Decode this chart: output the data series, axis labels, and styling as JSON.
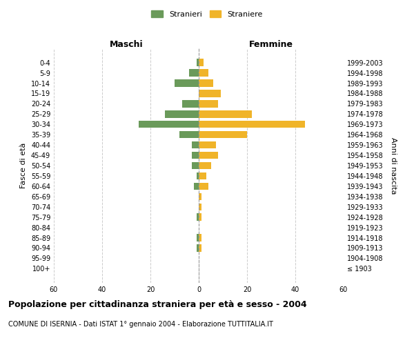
{
  "age_groups": [
    "100+",
    "95-99",
    "90-94",
    "85-89",
    "80-84",
    "75-79",
    "70-74",
    "65-69",
    "60-64",
    "55-59",
    "50-54",
    "45-49",
    "40-44",
    "35-39",
    "30-34",
    "25-29",
    "20-24",
    "15-19",
    "10-14",
    "5-9",
    "0-4"
  ],
  "birth_years": [
    "≤ 1903",
    "1904-1908",
    "1909-1913",
    "1914-1918",
    "1919-1923",
    "1924-1928",
    "1929-1933",
    "1934-1938",
    "1939-1943",
    "1944-1948",
    "1949-1953",
    "1954-1958",
    "1959-1963",
    "1964-1968",
    "1969-1973",
    "1974-1978",
    "1979-1983",
    "1984-1988",
    "1989-1993",
    "1994-1998",
    "1999-2003"
  ],
  "males": [
    0,
    0,
    1,
    1,
    0,
    1,
    0,
    0,
    2,
    1,
    3,
    3,
    3,
    8,
    25,
    14,
    7,
    0,
    10,
    4,
    1
  ],
  "females": [
    0,
    0,
    1,
    1,
    0,
    1,
    1,
    1,
    4,
    3,
    5,
    8,
    7,
    20,
    44,
    22,
    8,
    9,
    6,
    4,
    2
  ],
  "male_color": "#6a9a5a",
  "female_color": "#f0b429",
  "background_color": "#ffffff",
  "grid_color": "#cccccc",
  "title": "Popolazione per cittadinanza straniera per età e sesso - 2004",
  "subtitle": "COMUNE DI ISERNIA - Dati ISTAT 1° gennaio 2004 - Elaborazione TUTTITALIA.IT",
  "xlabel_left": "Maschi",
  "xlabel_right": "Femmine",
  "ylabel_left": "Fasce di età",
  "ylabel_right": "Anni di nascita",
  "legend_males": "Stranieri",
  "legend_females": "Straniere",
  "xlim": 60,
  "figsize": [
    6.0,
    5.0
  ],
  "dpi": 100
}
